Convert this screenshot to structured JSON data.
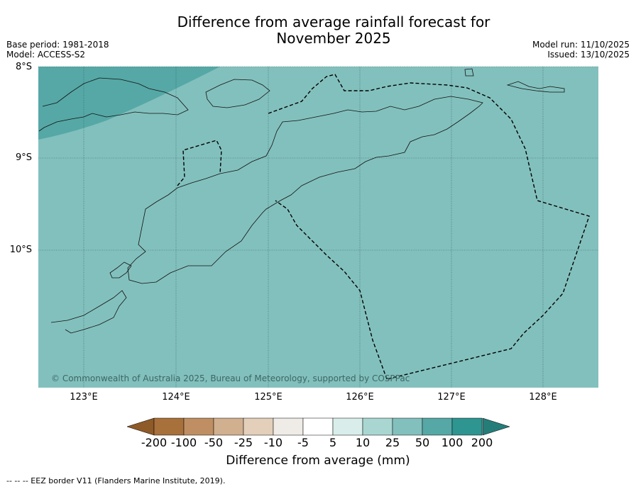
{
  "title_line1": "Difference from average rainfall forecast for",
  "title_line2": "November 2025",
  "base_period": "Base period: 1981-2018",
  "model": "Model: ACCESS-S2",
  "model_run": "Model run: 11/10/2025",
  "issued": "Issued: 13/10/2025",
  "lat_labels": [
    "8°S",
    "9°S",
    "10°S"
  ],
  "lon_labels": [
    "123°E",
    "124°E",
    "125°E",
    "126°E",
    "127°E",
    "128°E"
  ],
  "copyright": "© Commonwealth of Australia 2025, Bureau of Meteorology, supported by COSPPac",
  "colorbar": {
    "title": "Difference from average (mm)",
    "ticks": [
      "-200",
      "-100",
      "-50",
      "-25",
      "-10",
      "-5",
      "5",
      "10",
      "25",
      "50",
      "100",
      "200"
    ],
    "colors": [
      "#a8703a",
      "#bf8f63",
      "#d1b08f",
      "#e3cfba",
      "#efebe6",
      "#ffffff",
      "#d9eeea",
      "#a9d6d1",
      "#82c0bd",
      "#55a8a6",
      "#2e9591"
    ],
    "under_color": "#8e5a28",
    "over_color": "#257d79"
  },
  "fill_colors": {
    "main": "#82c0bd",
    "wet": "#55a8a6"
  },
  "footer": "--  --  -- EEZ border V11 (Flanders Marine Institute, 2019)."
}
